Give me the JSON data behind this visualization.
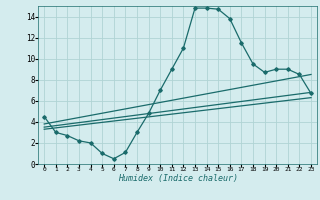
{
  "xlabel": "Humidex (Indice chaleur)",
  "xlim": [
    -0.5,
    23.5
  ],
  "ylim": [
    0,
    15
  ],
  "xticks": [
    0,
    1,
    2,
    3,
    4,
    5,
    6,
    7,
    8,
    9,
    10,
    11,
    12,
    13,
    14,
    15,
    16,
    17,
    18,
    19,
    20,
    21,
    22,
    23
  ],
  "yticks": [
    0,
    2,
    4,
    6,
    8,
    10,
    12,
    14
  ],
  "background_color": "#d4ecee",
  "grid_color": "#b0d4d4",
  "line_color": "#1a6b6b",
  "curve1_x": [
    0,
    1,
    2,
    3,
    4,
    5,
    6,
    7,
    8,
    9,
    10,
    11,
    12,
    13,
    14,
    15,
    16,
    17,
    18,
    19,
    20,
    21,
    22,
    23
  ],
  "curve1_y": [
    4.5,
    3.0,
    2.7,
    2.2,
    2.0,
    1.0,
    0.5,
    1.1,
    3.0,
    4.8,
    7.0,
    9.0,
    11.0,
    14.8,
    14.8,
    14.7,
    13.8,
    11.5,
    9.5,
    8.7,
    9.0,
    9.0,
    8.5,
    6.7
  ],
  "curve2_x": [
    0,
    23
  ],
  "curve2_y": [
    3.8,
    8.5
  ],
  "curve3_x": [
    0,
    23
  ],
  "curve3_y": [
    3.3,
    6.3
  ],
  "curve4_x": [
    0,
    23
  ],
  "curve4_y": [
    3.5,
    6.8
  ]
}
